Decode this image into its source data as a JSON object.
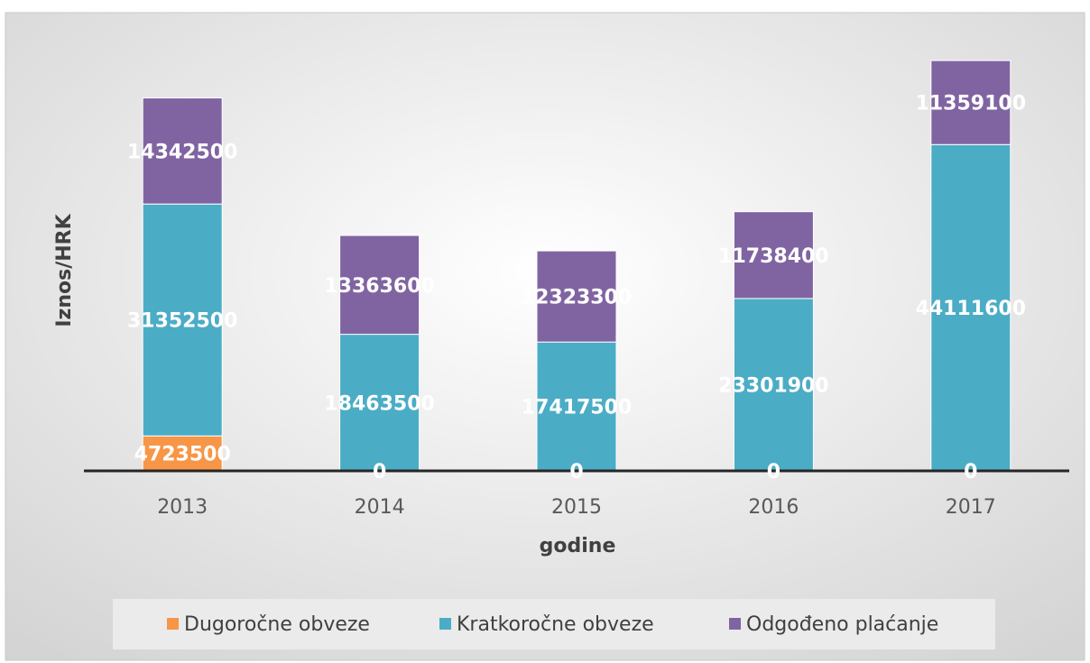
{
  "chart_data": {
    "type": "stacked_bar",
    "x_label": "godine",
    "y_label": "Iznos/HRK",
    "categories": [
      "2013",
      "2014",
      "2015",
      "2016",
      "2017"
    ],
    "series": [
      {
        "name": "Dugoročne obveze",
        "color": "#f79646",
        "values": [
          4723500,
          0,
          0,
          0,
          0
        ]
      },
      {
        "name": "Kratkoročne obveze",
        "color": "#4bacc6",
        "values": [
          31352500,
          18463500,
          17417500,
          23301900,
          44111600
        ]
      },
      {
        "name": "Odgođeno plaćanje",
        "color": "#8064a2",
        "values": [
          14342500,
          13363600,
          12323300,
          11738400,
          11359100
        ]
      }
    ],
    "ylim": [
      0,
      60000000
    ],
    "legend": "bottom"
  }
}
